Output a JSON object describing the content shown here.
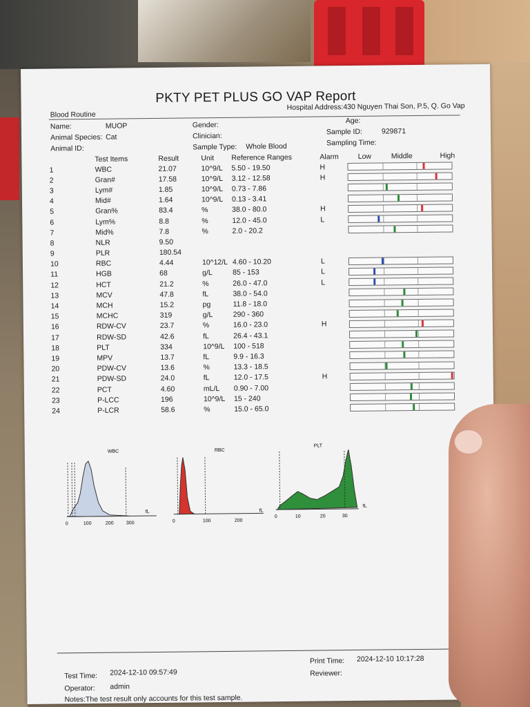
{
  "report": {
    "title": "PKTY PET PLUS GO VAP Report",
    "section": "Blood Routine",
    "hospital_address": "Hospital Address:430 Nguyen Thai Son, P.5, Q. Go Vap"
  },
  "patient": {
    "name_label": "Name:",
    "name_value": "MUOP",
    "species_label": "Animal Species:",
    "species_value": "Cat",
    "animal_id_label": "Animal ID:",
    "gender_label": "Gender:",
    "clinician_label": "Clinician:",
    "sample_type_label": "Sample Type:",
    "sample_type_value": "Whole Blood",
    "age_label": "Age:",
    "sample_id_label": "Sample ID:",
    "sample_id_value": "929871",
    "sampling_time_label": "Sampling Time:"
  },
  "table": {
    "headers": {
      "items": "Test Items",
      "result": "Result",
      "unit": "Unit",
      "ref": "Reference Ranges",
      "alarm": "Alarm",
      "low": "Low",
      "middle": "Middle",
      "high": "High"
    },
    "rows": [
      {
        "no": "1",
        "name": "WBC",
        "result": "21.07",
        "unit": "10^9/L",
        "ref": "5.50 - 19.50",
        "alarm": "H",
        "pos": 0.72,
        "color": "#d9333a"
      },
      {
        "no": "2",
        "name": "Gran#",
        "result": "17.58",
        "unit": "10^9/L",
        "ref": "3.12 - 12.58",
        "alarm": "H",
        "pos": 0.84,
        "color": "#d9333a"
      },
      {
        "no": "3",
        "name": "Lym#",
        "result": "1.85",
        "unit": "10^9/L",
        "ref": "0.73 - 7.86",
        "alarm": "",
        "pos": 0.36,
        "color": "#2e8b3a"
      },
      {
        "no": "4",
        "name": "Mid#",
        "result": "1.64",
        "unit": "10^9/L",
        "ref": "0.13 - 3.41",
        "alarm": "",
        "pos": 0.47,
        "color": "#2e8b3a"
      },
      {
        "no": "5",
        "name": "Gran%",
        "result": "83.4",
        "unit": "%",
        "ref": "38.0 - 80.0",
        "alarm": "H",
        "pos": 0.7,
        "color": "#d9333a"
      },
      {
        "no": "6",
        "name": "Lym%",
        "result": "8.8",
        "unit": "%",
        "ref": "12.0 - 45.0",
        "alarm": "L",
        "pos": 0.28,
        "color": "#2f4fb5"
      },
      {
        "no": "7",
        "name": "Mid%",
        "result": "7.8",
        "unit": "%",
        "ref": "2.0 - 20.2",
        "alarm": "",
        "pos": 0.43,
        "color": "#2e8b3a"
      },
      {
        "no": "8",
        "name": "NLR",
        "result": "9.50",
        "unit": "",
        "ref": "",
        "alarm": "",
        "pos": null,
        "color": ""
      },
      {
        "no": "9",
        "name": "PLR",
        "result": "180.54",
        "unit": "",
        "ref": "",
        "alarm": "",
        "pos": null,
        "color": ""
      },
      {
        "no": "10",
        "name": "RBC",
        "result": "4.44",
        "unit": "10^12/L",
        "ref": "4.60 - 10.20",
        "alarm": "L",
        "pos": 0.31,
        "color": "#2f4fb5"
      },
      {
        "no": "11",
        "name": "HGB",
        "result": "68",
        "unit": "g/L",
        "ref": "85 - 153",
        "alarm": "L",
        "pos": 0.23,
        "color": "#2f4fb5"
      },
      {
        "no": "12",
        "name": "HCT",
        "result": "21.2",
        "unit": "%",
        "ref": "26.0 - 47.0",
        "alarm": "L",
        "pos": 0.23,
        "color": "#2f4fb5"
      },
      {
        "no": "13",
        "name": "MCV",
        "result": "47.8",
        "unit": "fL",
        "ref": "38.0 - 54.0",
        "alarm": "",
        "pos": 0.52,
        "color": "#2e8b3a"
      },
      {
        "no": "14",
        "name": "MCH",
        "result": "15.2",
        "unit": "pg",
        "ref": "11.8 - 18.0",
        "alarm": "",
        "pos": 0.5,
        "color": "#2e8b3a"
      },
      {
        "no": "15",
        "name": "MCHC",
        "result": "319",
        "unit": "g/L",
        "ref": "290 - 360",
        "alarm": "",
        "pos": 0.45,
        "color": "#2e8b3a"
      },
      {
        "no": "16",
        "name": "RDW-CV",
        "result": "23.7",
        "unit": "%",
        "ref": "16.0 - 23.0",
        "alarm": "H",
        "pos": 0.69,
        "color": "#d9333a"
      },
      {
        "no": "17",
        "name": "RDW-SD",
        "result": "42.6",
        "unit": "fL",
        "ref": "26.4 - 43.1",
        "alarm": "",
        "pos": 0.63,
        "color": "#2e8b3a"
      },
      {
        "no": "18",
        "name": "PLT",
        "result": "334",
        "unit": "10^9/L",
        "ref": "100 - 518",
        "alarm": "",
        "pos": 0.5,
        "color": "#2e8b3a"
      },
      {
        "no": "19",
        "name": "MPV",
        "result": "13.7",
        "unit": "fL",
        "ref": "9.9 - 16.3",
        "alarm": "",
        "pos": 0.51,
        "color": "#2e8b3a"
      },
      {
        "no": "20",
        "name": "PDW-CV",
        "result": "13.6",
        "unit": "%",
        "ref": "13.3 - 18.5",
        "alarm": "",
        "pos": 0.34,
        "color": "#2e8b3a"
      },
      {
        "no": "21",
        "name": "PDW-SD",
        "result": "24.0",
        "unit": "fL",
        "ref": "12.0 - 17.5",
        "alarm": "H",
        "pos": 0.97,
        "color": "#d9333a"
      },
      {
        "no": "22",
        "name": "PCT",
        "result": "4.60",
        "unit": "mL/L",
        "ref": "0.90 - 7.00",
        "alarm": "",
        "pos": 0.58,
        "color": "#2e8b3a"
      },
      {
        "no": "23",
        "name": "P-LCC",
        "result": "196",
        "unit": "10^9/L",
        "ref": "15 - 240",
        "alarm": "",
        "pos": 0.57,
        "color": "#2e8b3a"
      },
      {
        "no": "24",
        "name": "P-LCR",
        "result": "58.6",
        "unit": "%",
        "ref": "15.0 - 65.0",
        "alarm": "",
        "pos": 0.6,
        "color": "#2e8b3a"
      }
    ]
  },
  "histograms": {
    "wbc": {
      "label": "WBC",
      "unit": "fL",
      "ticks": [
        "0",
        "100",
        "200",
        "300"
      ],
      "color": "#c8d4e6"
    },
    "rbc": {
      "label": "RBC",
      "unit": "fL",
      "ticks": [
        "0",
        "100",
        "200"
      ],
      "color": "#d4342d"
    },
    "plt": {
      "label": "PLT",
      "unit": "fL",
      "ticks": [
        "0",
        "10",
        "20",
        "30"
      ],
      "color": "#2f8f3a"
    }
  },
  "footer": {
    "test_time_label": "Test Time:",
    "test_time_value": "2024-12-10 09:57:49",
    "operator_label": "Operator:",
    "operator_value": "admin",
    "notes": "Notes:The test result only accounts for this test sample.",
    "print_time_label": "Print Time:",
    "print_time_value": "2024-12-10 10:17:28",
    "reviewer_label": "Reviewer:"
  }
}
